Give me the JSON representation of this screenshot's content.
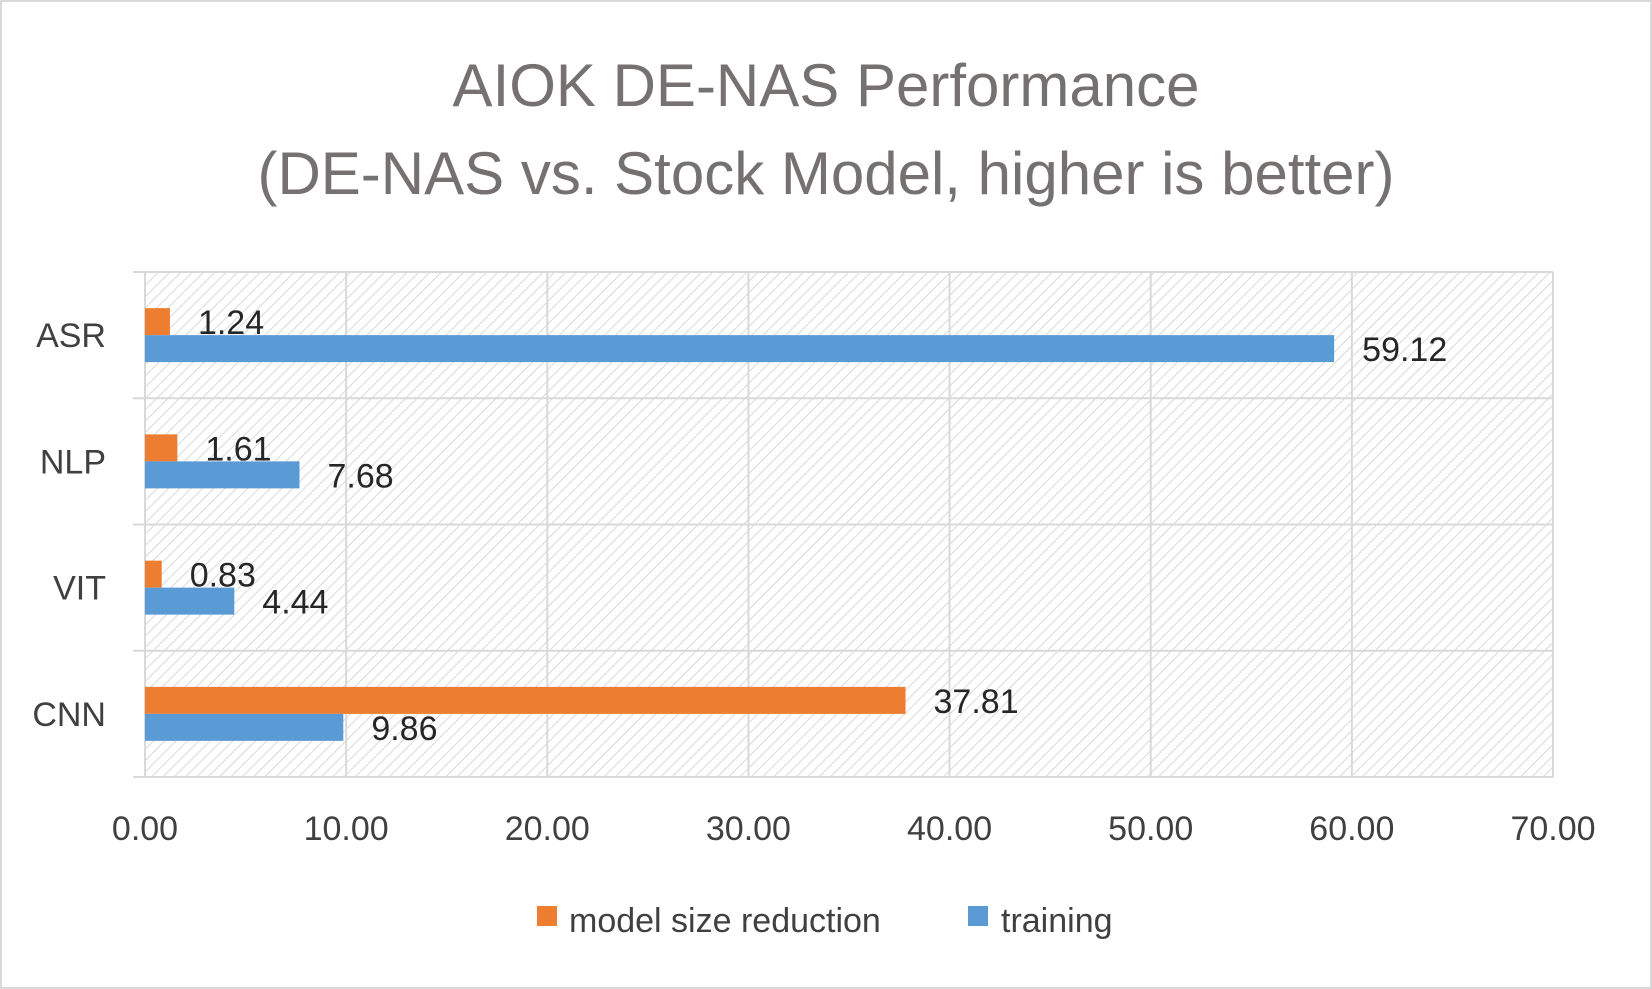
{
  "chart_data": {
    "type": "bar",
    "orientation": "horizontal",
    "title": [
      "AIOK DE-NAS Performance",
      "(DE-NAS vs. Stock Model, higher is better)"
    ],
    "categories": [
      "ASR",
      "NLP",
      "VIT",
      "CNN"
    ],
    "series": [
      {
        "name": "model size reduction",
        "color": "#ED7D31",
        "values": [
          1.24,
          1.61,
          0.83,
          37.81
        ],
        "labels": [
          "1.24",
          "1.61",
          "0.83",
          "37.81"
        ]
      },
      {
        "name": "training",
        "color": "#5B9BD5",
        "values": [
          59.12,
          7.68,
          4.44,
          9.86
        ],
        "labels": [
          "59.12",
          "7.68",
          "4.44",
          "9.86"
        ]
      }
    ],
    "xlim": [
      0,
      70
    ],
    "xticks": [
      "0.00",
      "10.00",
      "20.00",
      "30.00",
      "40.00",
      "50.00",
      "60.00",
      "70.00"
    ],
    "grid": true,
    "legend": "bottom"
  }
}
